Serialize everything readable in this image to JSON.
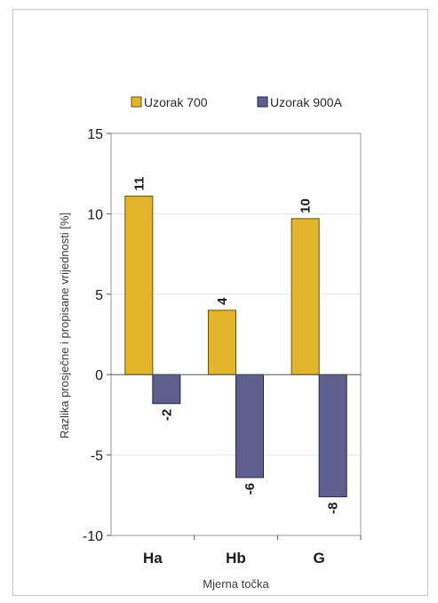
{
  "chart_data": {
    "type": "bar",
    "categories": [
      "Ha",
      "Hb",
      "G"
    ],
    "series": [
      {
        "name": "Uzorak 700",
        "values": [
          11.1,
          4.0,
          9.7
        ],
        "labels": [
          "11",
          "4",
          "10"
        ],
        "color": "#e3b52a",
        "edge": "#6b5200"
      },
      {
        "name": "Uzorak 900A",
        "values": [
          -1.8,
          -6.4,
          -7.6
        ],
        "labels": [
          "-2",
          "-6",
          "-8"
        ],
        "color": "#5e5f8f",
        "edge": "#24244a"
      }
    ],
    "xlabel": "Mjerna točka",
    "ylabel": "Razlika prosječne i propisane vrijednosti [%]",
    "ylim": [
      -10,
      15
    ],
    "yticks": [
      15,
      10,
      5,
      0,
      -5,
      -10
    ],
    "grid": true,
    "legend_position": "top"
  }
}
